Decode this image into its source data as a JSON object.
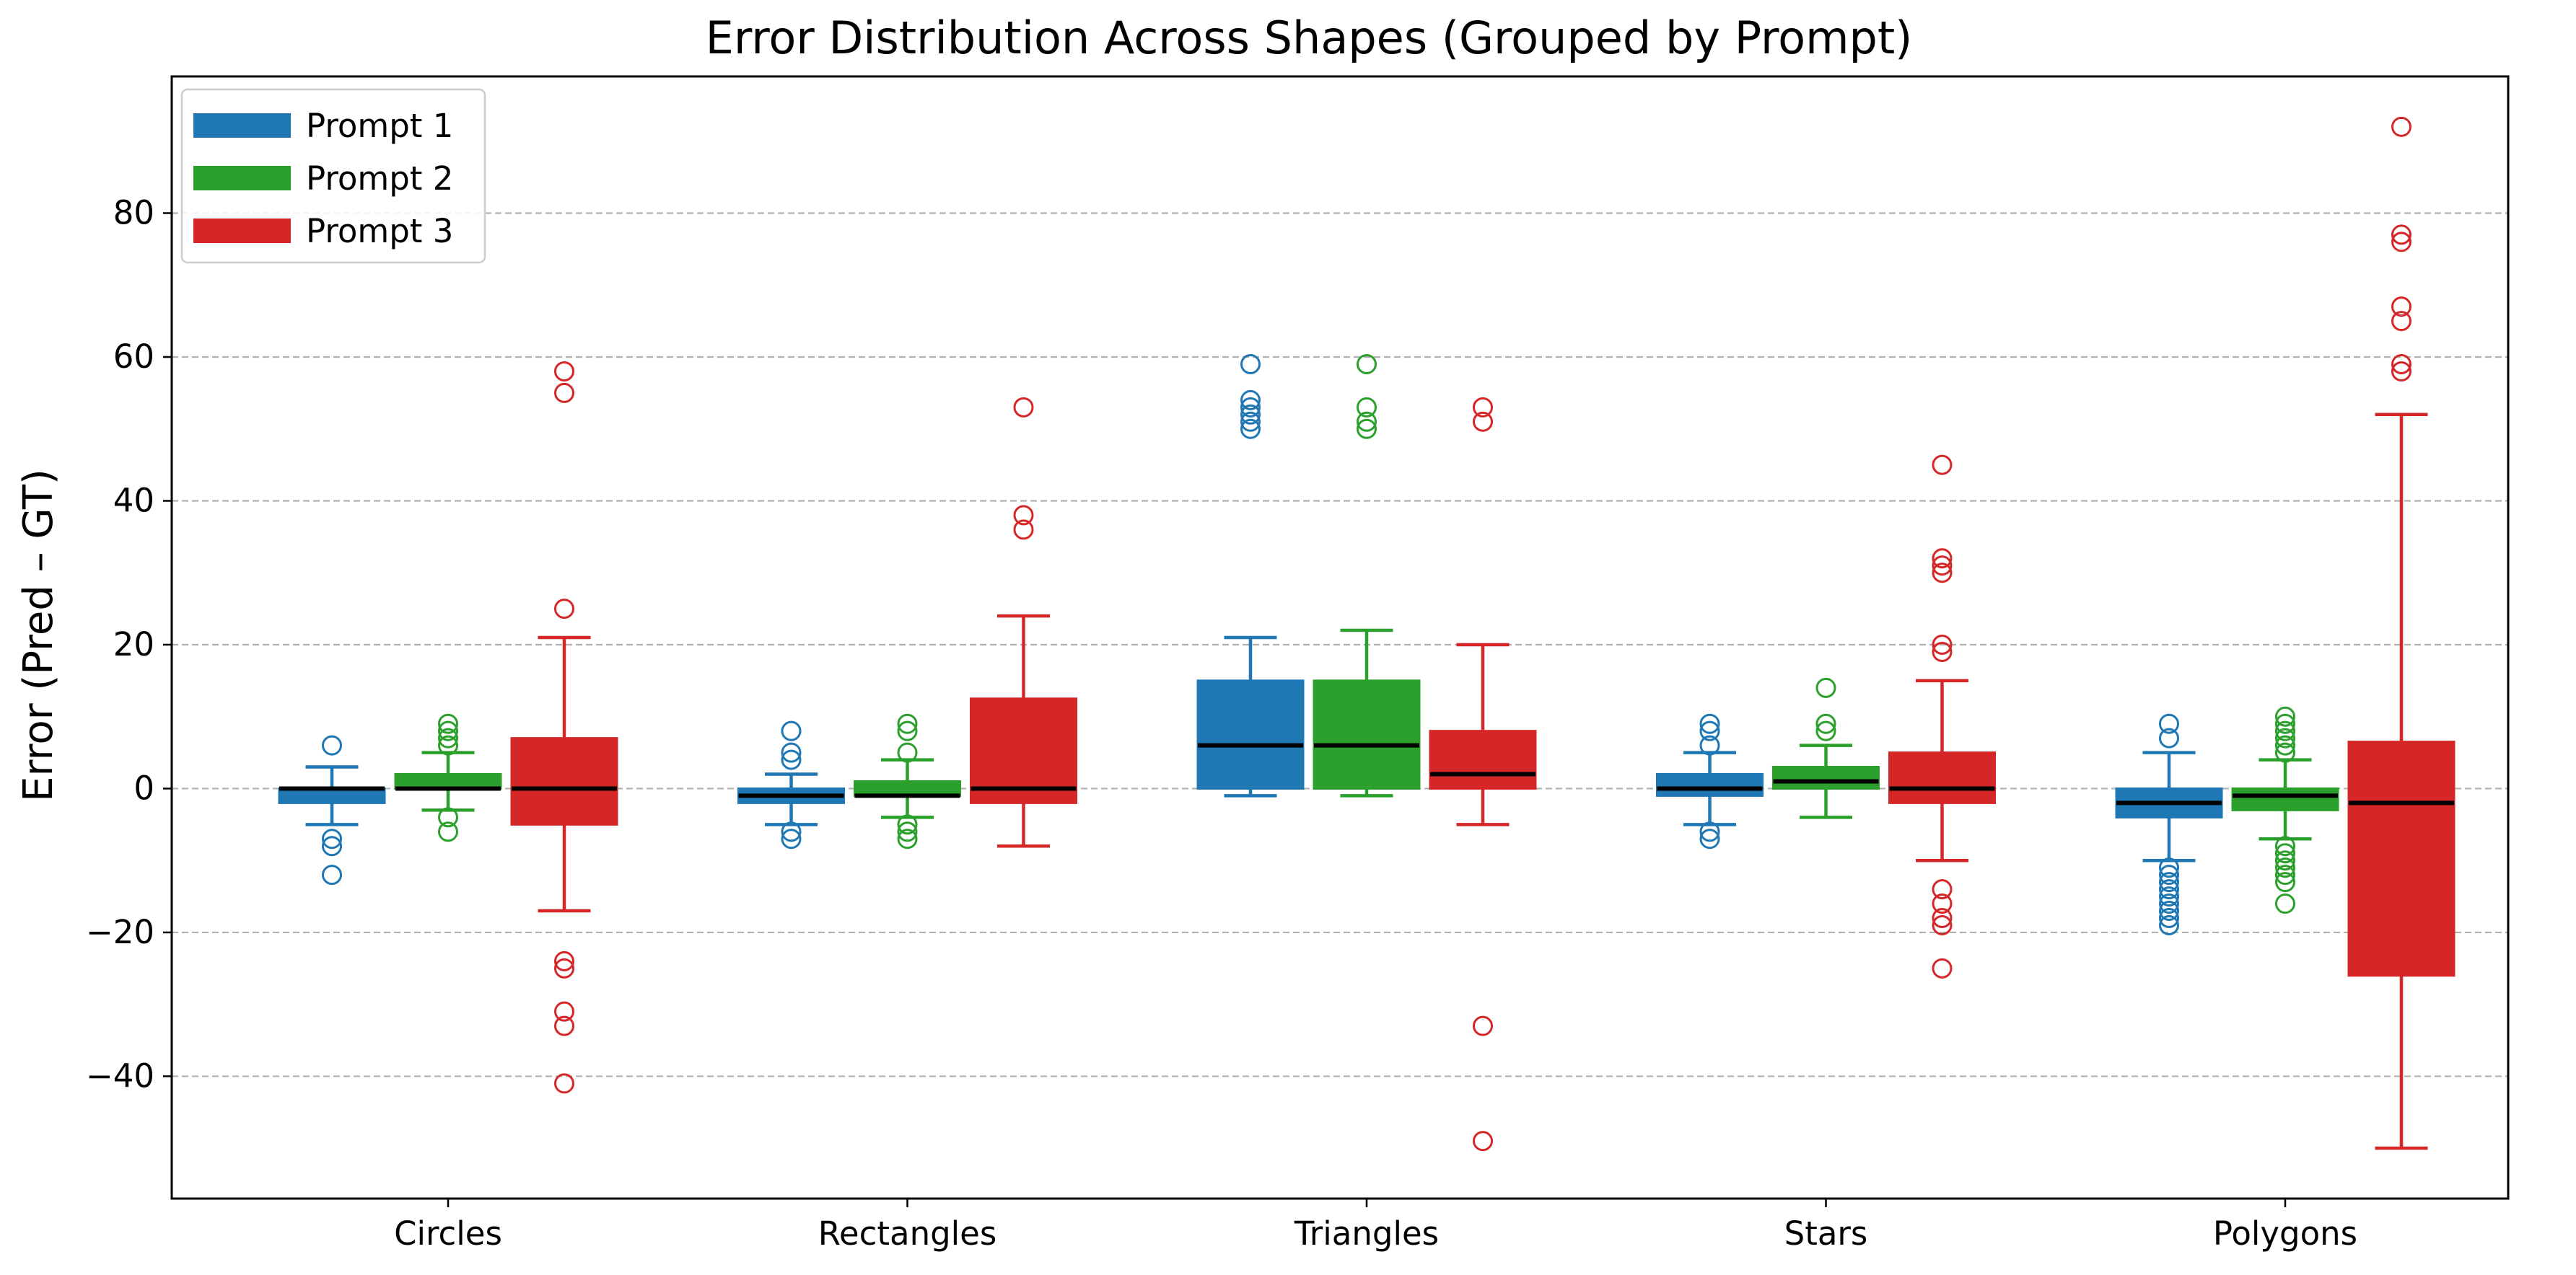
{
  "chart_data": {
    "type": "boxplot",
    "title": "Error Distribution Across Shapes (Grouped by Prompt)",
    "xlabel": "",
    "ylabel": "Error (Pred – GT)",
    "ylim": [
      -57,
      99
    ],
    "yticks": [
      -40,
      -20,
      0,
      20,
      40,
      60,
      80
    ],
    "grid": "y-dashed",
    "legend_position": "top-left",
    "categories": [
      "Circles",
      "Rectangles",
      "Triangles",
      "Stars",
      "Polygons"
    ],
    "series": [
      {
        "name": "Prompt 1",
        "color": "#1f77b4",
        "boxes": [
          {
            "whisker_low": -5,
            "q1": -2,
            "median": 0,
            "q3": 0,
            "whisker_high": 3,
            "outliers": [
              6,
              -7,
              -8,
              -12
            ]
          },
          {
            "whisker_low": -5,
            "q1": -2,
            "median": -1,
            "q3": 0,
            "whisker_high": 2,
            "outliers": [
              8,
              5,
              4,
              -6,
              -7
            ]
          },
          {
            "whisker_low": -1,
            "q1": 0,
            "median": 6,
            "q3": 15,
            "whisker_high": 21,
            "outliers": [
              59,
              54,
              53,
              52,
              51,
              50
            ]
          },
          {
            "whisker_low": -5,
            "q1": -1,
            "median": 0,
            "q3": 2,
            "whisker_high": 5,
            "outliers": [
              9,
              8,
              6,
              -6,
              -7
            ]
          },
          {
            "whisker_low": -10,
            "q1": -4,
            "median": -2,
            "q3": 0,
            "whisker_high": 5,
            "outliers": [
              9,
              7,
              -11,
              -12,
              -13,
              -14,
              -15,
              -16,
              -17,
              -18,
              -19
            ]
          }
        ]
      },
      {
        "name": "Prompt 2",
        "color": "#2ca02c",
        "boxes": [
          {
            "whisker_low": -3,
            "q1": 0,
            "median": 0,
            "q3": 2,
            "whisker_high": 5,
            "outliers": [
              9,
              8,
              7,
              6,
              -4,
              -6
            ]
          },
          {
            "whisker_low": -4,
            "q1": -1,
            "median": -1,
            "q3": 1,
            "whisker_high": 4,
            "outliers": [
              9,
              8,
              5,
              -5,
              -6,
              -7
            ]
          },
          {
            "whisker_low": -1,
            "q1": 0,
            "median": 6,
            "q3": 15,
            "whisker_high": 22,
            "outliers": [
              59,
              53,
              51,
              50
            ]
          },
          {
            "whisker_low": -4,
            "q1": 0,
            "median": 1,
            "q3": 3,
            "whisker_high": 6,
            "outliers": [
              14,
              9,
              8
            ]
          },
          {
            "whisker_low": -7,
            "q1": -3,
            "median": -1,
            "q3": 0,
            "whisker_high": 4,
            "outliers": [
              10,
              9,
              8,
              7,
              6,
              5,
              -8,
              -9,
              -10,
              -11,
              -12,
              -13,
              -16
            ]
          }
        ]
      },
      {
        "name": "Prompt 3",
        "color": "#d62728",
        "boxes": [
          {
            "whisker_low": -17,
            "q1": -5,
            "median": 0,
            "q3": 7,
            "whisker_high": 21,
            "outliers": [
              58,
              55,
              25,
              -24,
              -25,
              -31,
              -33,
              -41
            ]
          },
          {
            "whisker_low": -8,
            "q1": -2,
            "median": 0,
            "q3": 12.5,
            "whisker_high": 24,
            "outliers": [
              53,
              38,
              36
            ]
          },
          {
            "whisker_low": -5,
            "q1": 0,
            "median": 2,
            "q3": 8,
            "whisker_high": 20,
            "outliers": [
              53,
              51,
              -33,
              -49
            ]
          },
          {
            "whisker_low": -10,
            "q1": -2,
            "median": 0,
            "q3": 5,
            "whisker_high": 15,
            "outliers": [
              45,
              32,
              31,
              30,
              20,
              19,
              -14,
              -16,
              -18,
              -19,
              -25
            ]
          },
          {
            "whisker_low": -50,
            "q1": -26,
            "median": -2,
            "q3": 6.5,
            "whisker_high": 52,
            "outliers": [
              92,
              77,
              76,
              67,
              65,
              59,
              58
            ]
          }
        ]
      }
    ]
  }
}
